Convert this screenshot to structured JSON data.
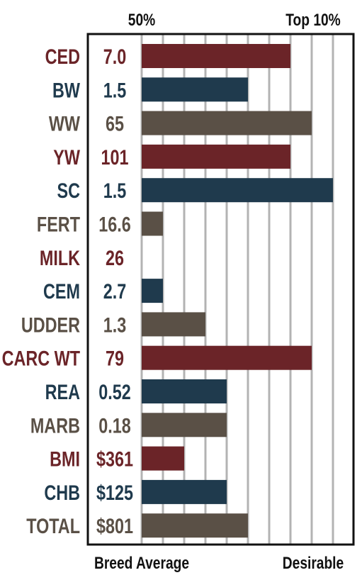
{
  "chart_data": {
    "type": "bar",
    "orientation": "horizontal",
    "top_labels": {
      "left": "50%",
      "right": "Top 10%"
    },
    "bottom_labels": {
      "left": "Breed Average",
      "right": "Desirable"
    },
    "categories": [
      "CED",
      "BW",
      "WW",
      "YW",
      "SC",
      "FERT",
      "MILK",
      "CEM",
      "UDDER",
      "CARC WT",
      "REA",
      "MARB",
      "BMI",
      "CHB",
      "TOTAL"
    ],
    "value_labels": [
      "7.0",
      "1.5",
      "65",
      "101",
      "1.5",
      "16.6",
      "26",
      "2.7",
      "1.3",
      "79",
      "0.52",
      "0.18",
      "$361",
      "$125",
      "$801"
    ],
    "percentile_scale": [
      50,
      45,
      40,
      35,
      30,
      25,
      20,
      15,
      10,
      5
    ],
    "ranks": [
      15,
      25,
      10,
      15,
      5,
      45,
      50,
      45,
      35,
      10,
      30,
      30,
      40,
      30,
      25
    ],
    "colors": [
      "#6b2428",
      "#1f3a4d",
      "#5a5046",
      "#6b2428",
      "#1f3a4d",
      "#5a5046",
      "#6b2428",
      "#1f3a4d",
      "#5a5046",
      "#6b2428",
      "#1f3a4d",
      "#5a5046",
      "#6b2428",
      "#1f3a4d",
      "#5a5046"
    ],
    "grid": true
  }
}
